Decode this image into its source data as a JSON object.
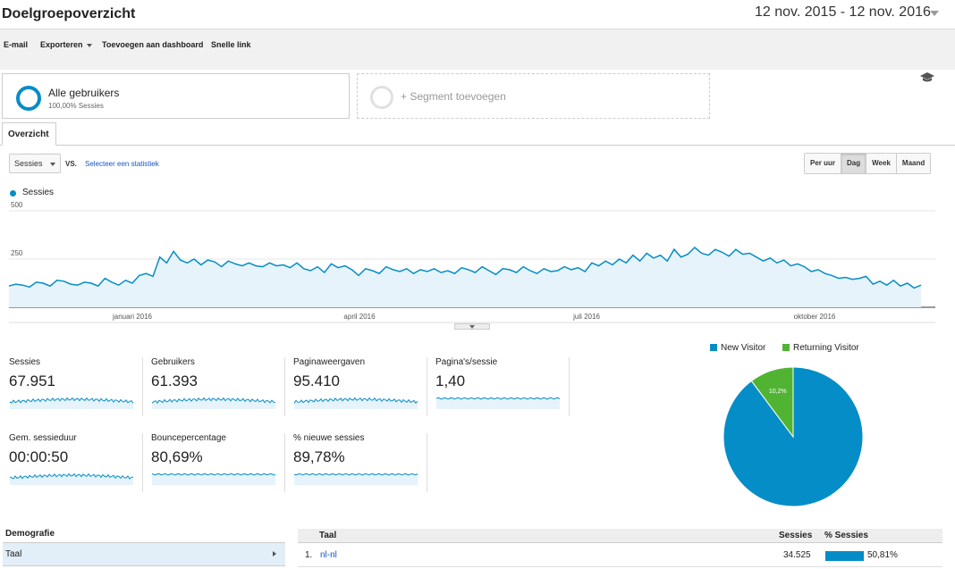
{
  "header": {
    "title": "Doelgroepoverzicht",
    "date_range": "12 nov. 2015 - 12 nov. 2016"
  },
  "toolbar": {
    "email": "E-mail",
    "export": "Exporteren",
    "add_dashboard": "Toevoegen aan dashboard",
    "shortcut": "Snelle link"
  },
  "segments": {
    "active": {
      "name": "Alle gebruikers",
      "sub": "100,00% Sessies"
    },
    "add": "+ Segment toevoegen"
  },
  "tabs": {
    "overview": "Overzicht"
  },
  "controls": {
    "metric": "Sessies",
    "vs": "VS.",
    "select_stat": "Selecteer een statistiek",
    "periods": [
      "Per uur",
      "Dag",
      "Week",
      "Maand"
    ],
    "active_period": "Dag"
  },
  "chart_data": {
    "type": "area",
    "legend": "Sessies",
    "y_ticks": [
      "500",
      "250"
    ],
    "ylim": [
      0,
      500
    ],
    "x_ticks": [
      "januari 2016",
      "april 2016",
      "juli 2016",
      "oktober 2016"
    ],
    "x_start": "2015-11-12",
    "x_end": "2016-11-12",
    "series": [
      {
        "name": "Sessies",
        "values": [
          110,
          120,
          115,
          105,
          130,
          125,
          110,
          140,
          135,
          120,
          115,
          130,
          125,
          110,
          150,
          130,
          115,
          140,
          125,
          165,
          175,
          160,
          260,
          230,
          290,
          245,
          230,
          250,
          220,
          245,
          235,
          210,
          240,
          225,
          215,
          230,
          215,
          210,
          230,
          215,
          220,
          205,
          230,
          200,
          190,
          210,
          180,
          225,
          205,
          215,
          195,
          165,
          200,
          190,
          175,
          210,
          195,
          185,
          200,
          175,
          195,
          185,
          200,
          180,
          190,
          175,
          205,
          195,
          180,
          210,
          190,
          170,
          200,
          195,
          180,
          210,
          190,
          175,
          200,
          185,
          190,
          210,
          195,
          205,
          185,
          230,
          215,
          240,
          220,
          250,
          230,
          270,
          240,
          280,
          255,
          270,
          240,
          300,
          260,
          275,
          310,
          280,
          270,
          300,
          285,
          265,
          300,
          275,
          280,
          260,
          240,
          255,
          230,
          245,
          215,
          225,
          210,
          185,
          195,
          175,
          165,
          150,
          155,
          145,
          150,
          160,
          120,
          135,
          115,
          140,
          110,
          125,
          100,
          115
        ]
      }
    ],
    "grid": true
  },
  "scorecards": [
    {
      "label": "Sessies",
      "value": "67.951"
    },
    {
      "label": "Gebruikers",
      "value": "61.393"
    },
    {
      "label": "Paginaweergaven",
      "value": "95.410"
    },
    {
      "label": "Pagina's/sessie",
      "value": "1,40"
    },
    {
      "label": "Gem. sessieduur",
      "value": "00:00:50"
    },
    {
      "label": "Bouncepercentage",
      "value": "80,69%"
    },
    {
      "label": "% nieuwe sessies",
      "value": "89,78%"
    }
  ],
  "pie_chart": {
    "type": "pie",
    "slices": [
      {
        "name": "New Visitor",
        "value": 89.8,
        "label": "89,8%",
        "color": "#058dc7"
      },
      {
        "name": "Returning Visitor",
        "value": 10.2,
        "label": "10,2%",
        "color": "#50b432"
      }
    ]
  },
  "demographics": {
    "header": "Demografie",
    "item": "Taal"
  },
  "table": {
    "col_taal": "Taal",
    "col_sessies": "Sessies",
    "col_pct": "% Sessies",
    "rows": [
      {
        "rank": "1.",
        "lang": "nl-nl",
        "sessions": "34.525",
        "pct": "50,81%",
        "pct_value": 50.81
      }
    ]
  },
  "colors": {
    "accent": "#058dc7",
    "returning": "#50b432",
    "link": "#1155cc"
  }
}
